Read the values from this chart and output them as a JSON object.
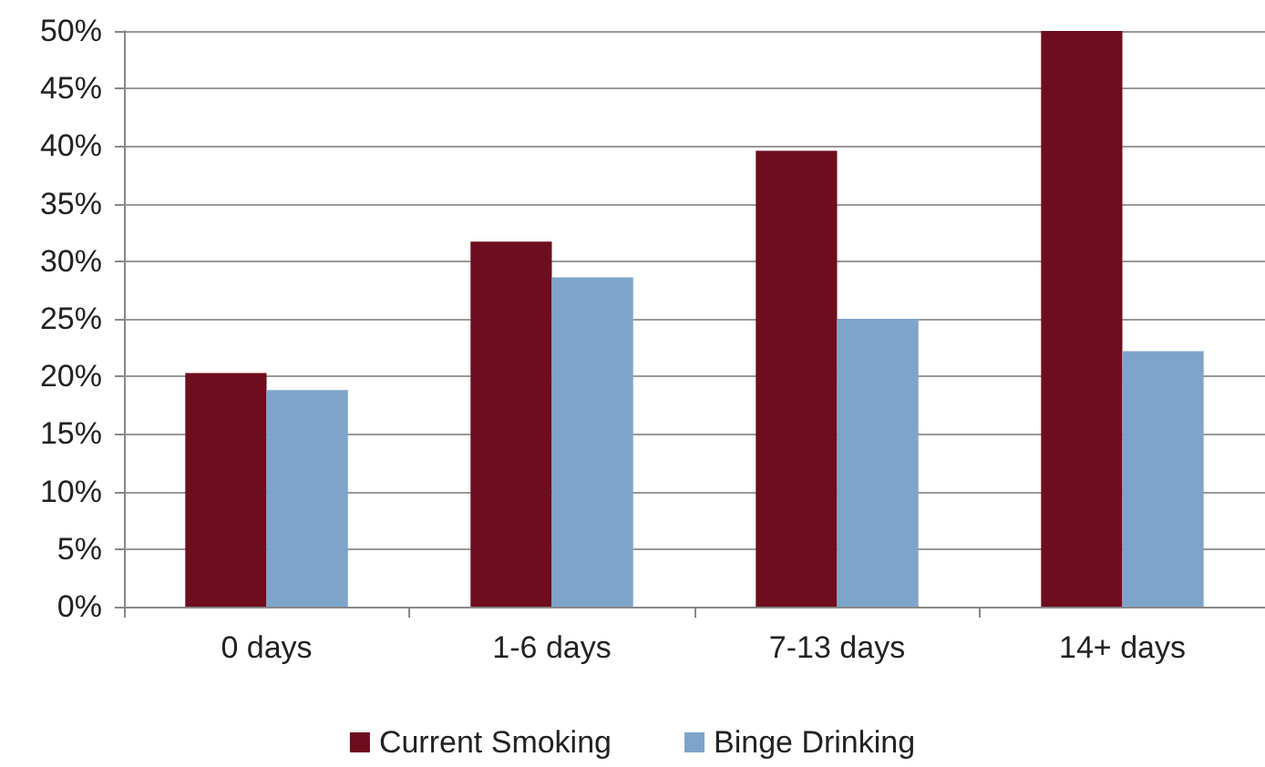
{
  "chart_data": {
    "type": "bar",
    "categories": [
      "0 days",
      "1-6 days",
      "7-13 days",
      "14+ days"
    ],
    "series": [
      {
        "name": "Current Smoking",
        "color": "#6e0d1e",
        "values": [
          20.3,
          31.7,
          39.6,
          50
        ]
      },
      {
        "name": "Binge Drinking",
        "color": "#7ea4cb",
        "values": [
          18.8,
          28.6,
          25.0,
          22.2
        ]
      }
    ],
    "ylim": [
      0,
      50
    ],
    "yticks": [
      {
        "value": 0,
        "label": "0%"
      },
      {
        "value": 5,
        "label": "5%"
      },
      {
        "value": 10,
        "label": "10%"
      },
      {
        "value": 15,
        "label": "15%"
      },
      {
        "value": 20,
        "label": "20%"
      },
      {
        "value": 25,
        "label": "25%"
      },
      {
        "value": 30,
        "label": "30%"
      },
      {
        "value": 35,
        "label": "35%"
      },
      {
        "value": 40,
        "label": "40%"
      },
      {
        "value": 45,
        "label": "45%"
      },
      {
        "value": 50,
        "label": "50%"
      }
    ],
    "grid": "y",
    "legend": "bottom"
  }
}
